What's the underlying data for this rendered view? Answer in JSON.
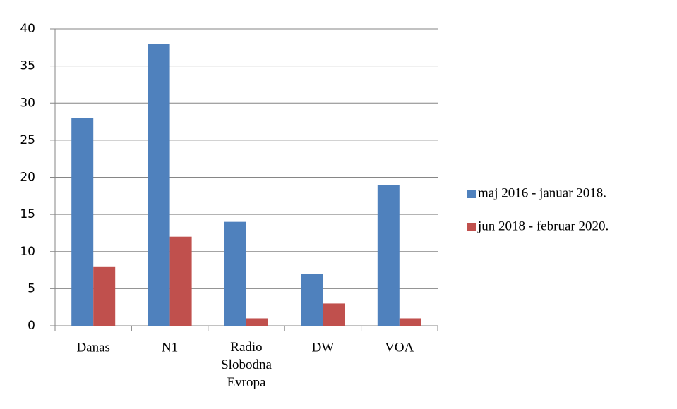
{
  "chart_data": {
    "type": "bar",
    "categories": [
      "Danas",
      "N1",
      "Radio Slobodna Evropa",
      "DW",
      "VOA"
    ],
    "series": [
      {
        "name": "maj 2016 - januar 2018.",
        "color": "#4f81bd",
        "values": [
          28,
          38,
          14,
          7,
          19
        ]
      },
      {
        "name": "jun 2018 - februar 2020.",
        "color": "#c0504d",
        "values": [
          8,
          12,
          1,
          3,
          1
        ]
      }
    ],
    "ylim": [
      0,
      40
    ],
    "yticks": [
      0,
      5,
      10,
      15,
      20,
      25,
      30,
      35,
      40
    ],
    "grid": true,
    "legend": "right"
  }
}
